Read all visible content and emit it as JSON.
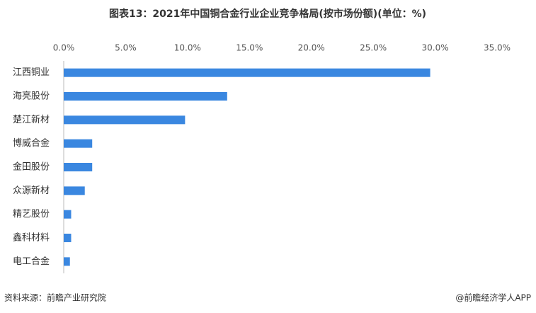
{
  "chart_data": {
    "type": "bar",
    "orientation": "horizontal",
    "title": "图表13：2021年中国铜合金行业企业竞争格局(按市场份额)(单位：%)",
    "categories": [
      "江西铜业",
      "海亮股份",
      "楚江新材",
      "博威合金",
      "金田股份",
      "众源新材",
      "精艺股份",
      "鑫科材料",
      "电工合金"
    ],
    "values": [
      29.6,
      13.2,
      9.8,
      2.3,
      2.3,
      1.7,
      0.6,
      0.6,
      0.5
    ],
    "color": "#3a87e0",
    "xlim": [
      0,
      35
    ],
    "xticks": [
      {
        "value": 0,
        "label": "0.0%"
      },
      {
        "value": 5,
        "label": "5.0%"
      },
      {
        "value": 10,
        "label": "10.0%"
      },
      {
        "value": 15,
        "label": "15.0%"
      },
      {
        "value": 20,
        "label": "20.0%"
      },
      {
        "value": 25,
        "label": "25.0%"
      },
      {
        "value": 30,
        "label": "30.0%"
      },
      {
        "value": 35,
        "label": "35.0%"
      }
    ],
    "grid": false,
    "source": "资料来源：前瞻产业研究院",
    "credit": "@前瞻经济学人APP"
  }
}
